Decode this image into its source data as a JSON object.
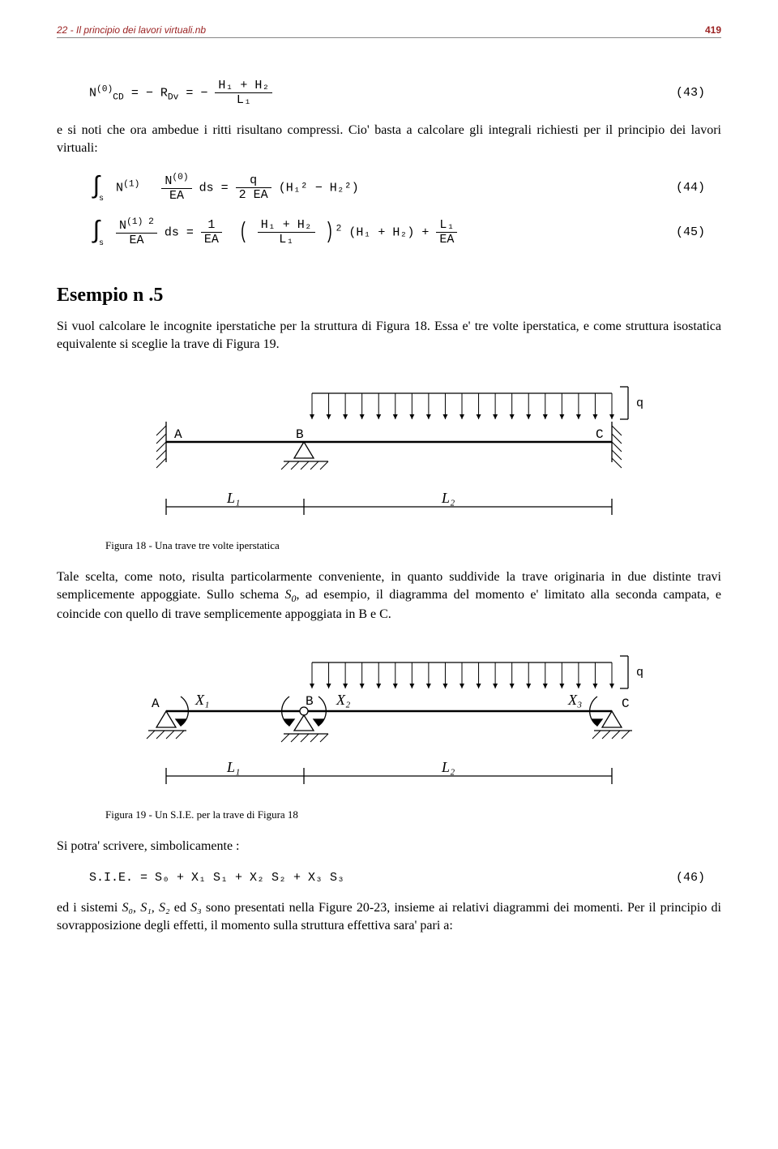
{
  "header": {
    "title": "22 - Il principio dei lavori virtuali.nb",
    "page_number": "419"
  },
  "eq43": {
    "lhs1": "N",
    "lhs1_sup": "(0)",
    "lhs1_sub": "CD",
    "eqsym1": " = − R",
    "r_sub": "Dv",
    "mid": " = − ",
    "frac_num": "H₁ + H₂",
    "frac_den": "L₁",
    "num": "(43)"
  },
  "para1": "e si noti che ora ambedue i ritti risultano compressi. Cio' basta a calcolare gli integrali richiesti per il principio dei lavori virtuali:",
  "eq44": {
    "int_sub": "s",
    "N1": "N",
    "N1_sup": "(1)",
    "frac1_num_a": "N",
    "frac1_num_sup": "(0)",
    "frac1_den": "EA",
    "ds": " ds = ",
    "frac2_num": "q",
    "frac2_den": "2 EA",
    "paren": " (H₁² − H₂²)",
    "num": "(44)"
  },
  "eq45": {
    "int_sub": "s",
    "frac1_num_a": "N",
    "frac1_num_sup": "(1)",
    "frac1_num_sup2": "2",
    "frac1_den": "EA",
    "ds": " ds = ",
    "frac2_num": "1",
    "frac2_den": "EA",
    "inner_num": "H₁ + H₂",
    "inner_den": "L₁",
    "pow": "2",
    "tail1": " (H₁ + H₂) + ",
    "frac3_num": "L₁",
    "frac3_den": "EA",
    "num": "(45)"
  },
  "section_title": "Esempio n .5",
  "para2": "Si vuol calcolare  le incognite iperstatiche per la struttura di Figura 18. Essa e' tre volte iperstatica, e come struttura isostatica equivalente si sceglie la trave di Figura 19.",
  "fig18": {
    "labels": {
      "A": "A",
      "B": "B",
      "C": "C",
      "q": "q",
      "L1": "L₁",
      "L2": "L₂"
    },
    "caption": "Figura 18 - Una trave tre volte iperstatica"
  },
  "para3_a": "Tale scelta, come noto, risulta particolarmente conveniente, in quanto suddivide la trave originaria in due distinte travi semplicemente appoggiate. Sullo schema ",
  "para3_b": "S",
  "para3_b_sub": "0",
  "para3_c": ", ad esempio, il diagramma del momento e' limitato alla seconda campata, e coincide con quello di trave semplicemente appoggiata in B e C.",
  "fig19": {
    "labels": {
      "A": "A",
      "B": "B",
      "C": "C",
      "q": "q",
      "X1": "X₁",
      "X2": "X₂",
      "X3": "X₃",
      "L1": "L₁",
      "L2": "L₂"
    },
    "caption": "Figura 19 - Un S.I.E. per la trave di Figura 18"
  },
  "para4": "Si potra' scrivere, simbolicamente :",
  "eq46": {
    "body": "S.I.E. =  S₀ + X₁ S₁ + X₂ S₂ + X₃ S₃",
    "num": "(46)"
  },
  "para5_a": "ed i sistemi ",
  "para5_b": "S₀, S₁, S₂",
  "para5_c": " ed ",
  "para5_d": "S₃",
  "para5_e": " sono presentati nella Figure 20-23, insieme ai relativi diagrammi dei momenti. Per il principio di sovrapposizione degli effetti, il momento sulla struttura effettiva sara' pari a:",
  "diagram_style": {
    "stroke": "#000000",
    "stroke_width": 1.3,
    "font": "15px Courier New"
  }
}
